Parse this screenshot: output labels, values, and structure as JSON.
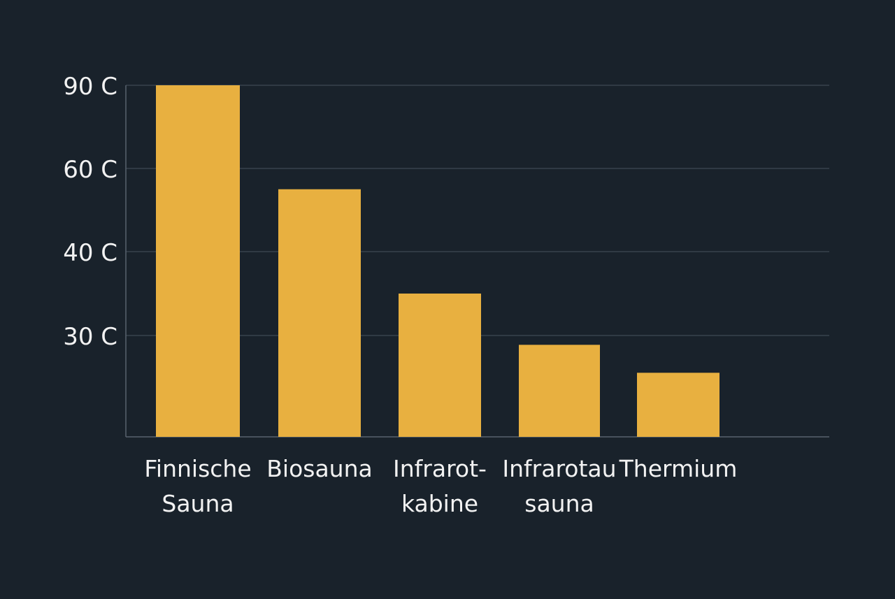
{
  "chart_data": {
    "type": "bar",
    "categories": [
      [
        "Finnische",
        "Sauna"
      ],
      [
        "Biosauna"
      ],
      [
        "Infrarot-",
        "kabine"
      ],
      [
        "Infrarotau",
        "sauna"
      ],
      [
        "Thermium"
      ]
    ],
    "values": [
      90,
      55,
      35,
      28,
      22
    ],
    "yticks": [
      "90 C",
      "60 C",
      "40 C",
      "30 C"
    ],
    "grid": true,
    "title": "",
    "xlabel": "",
    "ylabel": ""
  },
  "colors": {
    "background": "#19222b",
    "bar": "#e8b040",
    "grid": "#3f4954",
    "axis": "#59636e",
    "text": "#f2f2f2"
  }
}
